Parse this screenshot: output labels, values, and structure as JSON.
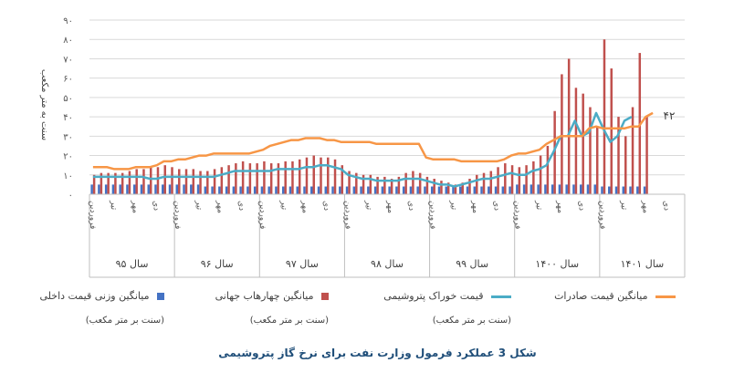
{
  "chart_data": {
    "type": "bar-line-combo",
    "title": "شکل 3 عملکرد فرمول وزارت نفت برای نرخ گاز پتروشیمی",
    "ylabel": "سنت به متر مکعب",
    "ylim": [
      0,
      90
    ],
    "y_ticks": [
      "۰",
      "۱۰",
      "۲۰",
      "۳۰",
      "۴۰",
      "۵۰",
      "۶۰",
      "۷۰",
      "۸۰",
      "۹۰"
    ],
    "month_labels": [
      "فروردین",
      "تیر",
      "مهر",
      "دی"
    ],
    "years": [
      "سال ۹۵",
      "سال ۹۶",
      "سال ۹۷",
      "سال ۹۸",
      "سال ۹۹",
      "سال ۱۴۰۰",
      "سال ۱۴۰۱"
    ],
    "months_per_year": 12,
    "annotation": "۴۲",
    "series": [
      {
        "name": "میانگین وزنی قیمت داخلی",
        "unit": "(سنت بر متر مکعب)",
        "kind": "bar",
        "color": "#4472c4",
        "values": [
          5,
          5,
          5,
          5,
          5,
          5,
          5,
          5,
          5,
          5,
          5,
          5,
          5,
          5,
          5,
          5,
          4,
          4,
          4,
          4,
          4,
          4,
          4,
          4,
          4,
          4,
          4,
          4,
          4,
          4,
          4,
          4,
          4,
          4,
          4,
          4,
          4,
          4,
          4,
          4,
          4,
          4,
          4,
          4,
          4,
          4,
          4,
          4,
          4,
          4,
          4,
          4,
          4,
          4,
          4,
          4,
          4,
          4,
          4,
          4,
          5,
          5,
          5,
          5,
          5,
          5,
          5,
          5,
          5,
          5,
          5,
          5,
          4,
          4,
          4,
          4,
          4,
          4,
          4
        ]
      },
      {
        "name": "میانگین چهارهاب جهانی",
        "unit": "(سنت بر متر مکعب)",
        "kind": "bar",
        "color": "#c0504d",
        "values": [
          10,
          11,
          11,
          11,
          11,
          12,
          13,
          13,
          14,
          14,
          15,
          14,
          13,
          13,
          13,
          12,
          12,
          13,
          14,
          15,
          16,
          17,
          16,
          16,
          17,
          16,
          16,
          17,
          17,
          18,
          19,
          20,
          19,
          19,
          18,
          15,
          12,
          11,
          10,
          10,
          9,
          9,
          8,
          9,
          11,
          12,
          11,
          9,
          8,
          7,
          6,
          5,
          6,
          8,
          10,
          11,
          12,
          14,
          16,
          15,
          14,
          15,
          17,
          20,
          25,
          43,
          62,
          70,
          55,
          52,
          45,
          35,
          80,
          65,
          40,
          30,
          45,
          73,
          40
        ]
      },
      {
        "name": "قیمت خوراک پتروشیمی",
        "unit": "(سنت بر متر مکعب)",
        "kind": "line",
        "color": "#4bacc6",
        "values": [
          9,
          9,
          9,
          9,
          9,
          9,
          9,
          9,
          8,
          8,
          9,
          9,
          9,
          9,
          9,
          9,
          9,
          9,
          10,
          11,
          12,
          12,
          12,
          12,
          12,
          12,
          13,
          13,
          13,
          13,
          14,
          14,
          15,
          15,
          14,
          13,
          10,
          9,
          8,
          8,
          7,
          7,
          7,
          7,
          8,
          8,
          8,
          7,
          6,
          5,
          5,
          4,
          5,
          6,
          7,
          8,
          8,
          9,
          10,
          11,
          10,
          10,
          12,
          13,
          15,
          22,
          30,
          30,
          38,
          30,
          32,
          42,
          34,
          27,
          30,
          38,
          40
        ]
      },
      {
        "name": "میانگین قیمت صادرات",
        "unit": "",
        "kind": "line",
        "color": "#f79646",
        "values": [
          14,
          14,
          14,
          13,
          13,
          13,
          14,
          14,
          14,
          15,
          17,
          17,
          18,
          18,
          19,
          20,
          20,
          21,
          21,
          21,
          21,
          21,
          21,
          22,
          23,
          25,
          26,
          27,
          28,
          28,
          29,
          29,
          29,
          28,
          28,
          27,
          27,
          27,
          27,
          27,
          26,
          26,
          26,
          26,
          26,
          26,
          26,
          19,
          18,
          18,
          18,
          18,
          17,
          17,
          17,
          17,
          17,
          17,
          18,
          20,
          21,
          21,
          22,
          23,
          26,
          28,
          30,
          30,
          30,
          30,
          34,
          35,
          34,
          34,
          34,
          34,
          35,
          35,
          40,
          42
        ]
      }
    ]
  }
}
